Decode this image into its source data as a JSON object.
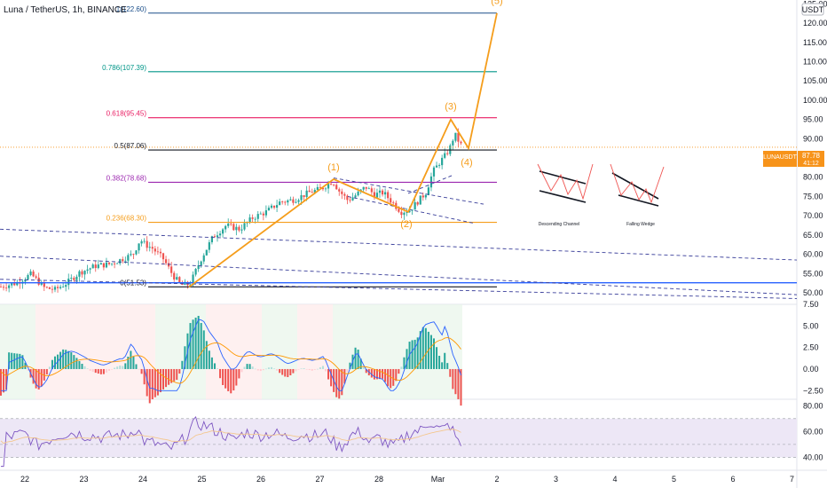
{
  "header": {
    "symbol_title": "Luna / TetherUS, 1h, BINANCE",
    "currency": "USDT"
  },
  "price_tag": {
    "symbol": "LUNAUSDT",
    "price": "87.78",
    "countdown": "41:12",
    "color": "#f7931a"
  },
  "colors": {
    "up": "#26a69a",
    "down": "#ef5350",
    "wave": "#f59d1b",
    "accent_blue": "#2962ff",
    "macd_line": "#2962ff",
    "signal_line": "#ff9800",
    "rsi_line": "#7e57c2",
    "rsi_band": "#ede7f6"
  },
  "x_axis": {
    "labels": [
      "22",
      "23",
      "24",
      "25",
      "26",
      "27",
      "28",
      "Mar",
      "2",
      "3",
      "4",
      "5",
      "6",
      "7"
    ]
  },
  "chart_data": [
    {
      "type": "candlestick",
      "id": "price",
      "title": "Luna / TetherUS, 1h, BINANCE",
      "ylabel": "USDT",
      "y_ticks": [
        50,
        55,
        60,
        65,
        70,
        75,
        80,
        85,
        90,
        95,
        100,
        105,
        110,
        115,
        120,
        125
      ],
      "ylim": [
        47,
        126
      ],
      "fib_levels": [
        {
          "label": "0(51.53)",
          "value": 51.53,
          "color": "#131722"
        },
        {
          "label": "0.236(68.30)",
          "value": 68.3,
          "color": "#f59d1b"
        },
        {
          "label": "0.382(78.68)",
          "value": 78.68,
          "color": "#9c27b0"
        },
        {
          "label": "0.5(87.06)",
          "value": 87.06,
          "color": "#131722"
        },
        {
          "label": "0.618(95.45)",
          "value": 95.45,
          "color": "#e91e63"
        },
        {
          "label": "0.786(107.39)",
          "value": 107.39,
          "color": "#009688"
        },
        {
          "label": "1(122.60)",
          "value": 122.6,
          "color": "#1a4e8a"
        }
      ],
      "wave_labels": [
        "(1)",
        "(2)",
        "(3)",
        "(4)",
        "(5)"
      ],
      "pattern_captions": [
        "Descending Channel",
        "Falling Wedge"
      ],
      "horizontal_line": 52.6
    },
    {
      "type": "histogram+line",
      "id": "macd",
      "y_ticks": [
        "7.50",
        "5.00",
        "2.50",
        "0.00",
        "−2.50"
      ],
      "ylim": [
        -3.5,
        7.5
      ]
    },
    {
      "type": "line",
      "id": "rsi",
      "y_ticks": [
        "80.00",
        "60.00",
        "40.00"
      ],
      "ylim": [
        30,
        85
      ],
      "band": [
        40,
        70
      ]
    }
  ]
}
